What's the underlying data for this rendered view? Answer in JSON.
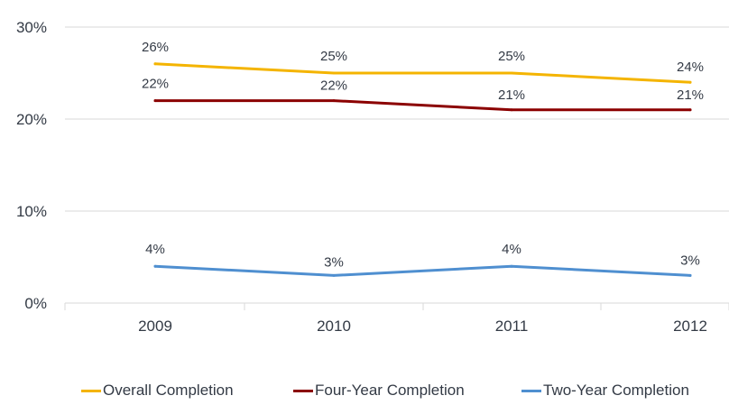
{
  "chart_data": {
    "type": "line",
    "title": "",
    "xlabel": "",
    "ylabel": "",
    "categories": [
      "2009",
      "2010",
      "2011",
      "2012"
    ],
    "ylim": [
      0,
      30
    ],
    "yticks": [
      0,
      10,
      20,
      30
    ],
    "ytick_labels": [
      "0%",
      "10%",
      "20%",
      "30%"
    ],
    "grid": "horizontal",
    "legend_position": "bottom",
    "series": [
      {
        "name": "Overall Completion",
        "color": "#f4b400",
        "values": [
          26,
          25,
          25,
          24
        ],
        "labels": [
          "26%",
          "25%",
          "25%",
          "24%"
        ]
      },
      {
        "name": "Four-Year Completion",
        "color": "#8b0000",
        "values": [
          22,
          22,
          21,
          21
        ],
        "labels": [
          "22%",
          "22%",
          "21%",
          "21%"
        ]
      },
      {
        "name": "Two-Year Completion",
        "color": "#4f8fd0",
        "values": [
          4,
          3,
          4,
          3
        ],
        "labels": [
          "4%",
          "3%",
          "4%",
          "3%"
        ]
      }
    ]
  }
}
